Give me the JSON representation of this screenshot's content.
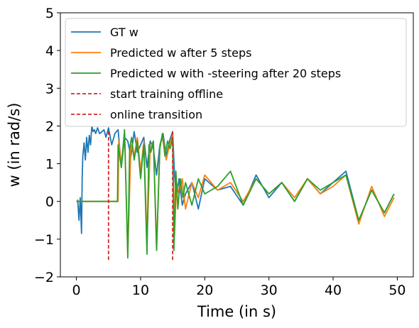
{
  "chart_data": {
    "type": "line",
    "xlabel": "Time (in s)",
    "ylabel": "w (in rad/s)",
    "xlim": [
      -2.5,
      52.5
    ],
    "ylim": [
      -2,
      5
    ],
    "xticks": [
      0,
      10,
      20,
      30,
      40,
      50
    ],
    "yticks": [
      -2,
      -1,
      0,
      1,
      2,
      3,
      4,
      5
    ],
    "xtick_labels": [
      "0",
      "10",
      "20",
      "30",
      "40",
      "50"
    ],
    "ytick_labels": [
      "−2",
      "−1",
      "0",
      "1",
      "2",
      "3",
      "4",
      "5"
    ],
    "grid": false,
    "legend_position": "top-left",
    "series": [
      {
        "name": "GT w",
        "color": "#1f77b4",
        "x": [
          0.2,
          0.4,
          0.6,
          0.8,
          0.9,
          1.0,
          1.2,
          1.4,
          1.6,
          1.8,
          2.0,
          2.2,
          2.4,
          2.6,
          2.8,
          3.0,
          3.3,
          3.6,
          4.0,
          4.3,
          4.6,
          5.0,
          5.5,
          6.0,
          6.5,
          7.0,
          7.5,
          8.0,
          8.5,
          9.0,
          9.5,
          10.0,
          10.5,
          11.0,
          11.5,
          12.0,
          12.5,
          13.0,
          13.5,
          14.0,
          14.5,
          15.0,
          15.3,
          15.6,
          16.0,
          16.5,
          17.0,
          18.0,
          19.0,
          20.0,
          22.0,
          24.0,
          26.0,
          28.0,
          30.0,
          32.0,
          34.0,
          36.0,
          38.0,
          40.0,
          42.0,
          44.0,
          46.0,
          48.0,
          49.5
        ],
        "y": [
          0.05,
          -0.5,
          0.1,
          -0.85,
          0.6,
          1.2,
          1.55,
          1.1,
          1.7,
          1.3,
          1.75,
          1.5,
          2.0,
          1.85,
          1.9,
          1.8,
          1.95,
          1.8,
          1.85,
          1.9,
          1.7,
          1.95,
          1.5,
          1.8,
          1.9,
          0.9,
          1.7,
          1.6,
          1.2,
          1.85,
          1.3,
          1.5,
          1.7,
          0.9,
          1.6,
          1.4,
          0.7,
          1.5,
          1.8,
          1.2,
          1.6,
          1.85,
          0.7,
          0.1,
          0.6,
          -0.1,
          0.2,
          0.5,
          -0.2,
          0.6,
          0.3,
          0.4,
          -0.1,
          0.7,
          0.1,
          0.5,
          0.0,
          0.6,
          0.2,
          0.5,
          0.8,
          -0.5,
          0.3,
          -0.3,
          0.2
        ]
      },
      {
        "name": "Predicted w after 5 steps",
        "color": "#ff7f0e",
        "x": [
          0.0,
          6.5,
          6.6,
          7.0,
          7.5,
          8.0,
          8.5,
          9.0,
          9.5,
          10.0,
          10.5,
          11.0,
          11.5,
          12.0,
          12.5,
          13.0,
          13.5,
          14.0,
          14.5,
          15.0,
          15.3,
          15.6,
          16.0,
          16.5,
          17.0,
          18.0,
          19.0,
          20.0,
          22.0,
          24.0,
          26.0,
          28.0,
          30.0,
          32.0,
          34.0,
          36.0,
          38.0,
          40.0,
          42.0,
          44.0,
          46.0,
          48.0,
          49.5
        ],
        "y": [
          0.0,
          0.0,
          1.6,
          1.0,
          1.8,
          -1.4,
          1.5,
          1.2,
          1.7,
          0.8,
          1.6,
          -1.0,
          1.4,
          1.6,
          -1.2,
          1.5,
          1.7,
          1.1,
          1.5,
          1.75,
          -0.9,
          0.5,
          0.2,
          0.6,
          -0.2,
          0.5,
          0.1,
          0.7,
          0.3,
          0.5,
          0.0,
          0.6,
          0.2,
          0.5,
          0.1,
          0.6,
          0.2,
          0.4,
          0.7,
          -0.6,
          0.4,
          -0.4,
          0.1
        ]
      },
      {
        "name": "Predicted w with -steering after 20 steps",
        "color": "#2ca02c",
        "x": [
          0.0,
          6.4,
          6.5,
          7.0,
          7.5,
          8.0,
          8.3,
          8.6,
          9.0,
          9.5,
          10.0,
          10.5,
          11.0,
          11.3,
          11.6,
          12.0,
          12.5,
          13.0,
          13.4,
          13.8,
          14.2,
          14.6,
          15.0,
          15.2,
          15.5,
          15.8,
          16.2,
          16.6,
          17.0,
          18.0,
          19.0,
          20.0,
          22.0,
          24.0,
          26.0,
          28.0,
          30.0,
          32.0,
          34.0,
          36.0,
          38.0,
          40.0,
          42.0,
          44.0,
          46.0,
          48.0,
          49.5
        ],
        "y": [
          0.0,
          0.0,
          1.5,
          0.9,
          1.9,
          -1.5,
          1.4,
          1.7,
          1.1,
          1.6,
          0.6,
          1.5,
          -1.4,
          1.5,
          1.3,
          1.6,
          -1.3,
          1.4,
          1.8,
          1.2,
          1.6,
          1.4,
          1.7,
          -1.3,
          0.8,
          -0.2,
          0.6,
          0.1,
          0.5,
          -0.1,
          0.6,
          0.2,
          0.4,
          0.8,
          -0.1,
          0.6,
          0.2,
          0.5,
          0.0,
          0.6,
          0.3,
          0.5,
          0.7,
          -0.5,
          0.3,
          -0.3,
          0.2
        ]
      },
      {
        "name": "start training offline",
        "color": "#d62728",
        "dashed": true,
        "x": [
          5.0,
          5.0
        ],
        "y": [
          -1.55,
          1.9
        ]
      },
      {
        "name": "online transition",
        "color": "#d62728",
        "dashed": true,
        "x": [
          15.0,
          15.0
        ],
        "y": [
          -1.55,
          1.9
        ]
      }
    ]
  }
}
